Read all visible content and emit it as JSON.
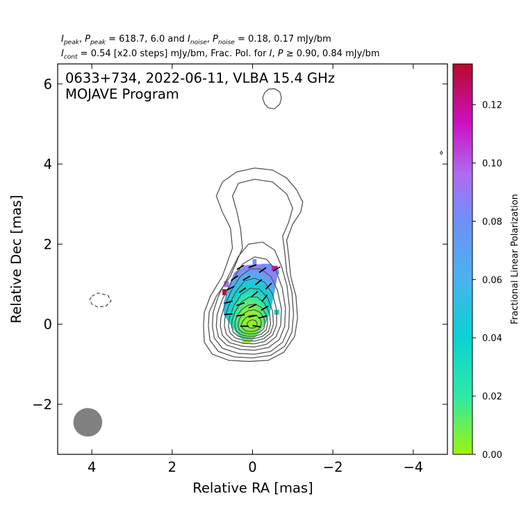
{
  "header": {
    "line1": {
      "i_peak_label": "I",
      "i_peak_sub": "peak",
      "p_peak_label": "P",
      "p_peak_sub": "peak",
      "peak_values": "= 618.7, 6.0 and",
      "i_noise_label": "I",
      "i_noise_sub": "noise",
      "p_noise_label": "P",
      "p_noise_sub": "noise",
      "noise_values": "= 0.18, 0.17 mJy/bm"
    },
    "line2": {
      "i_cont_label": "I",
      "i_cont_sub": "cont",
      "cont_text": "= 0.54 [x2.0 steps] mJy/bm, Frac. Pol. for",
      "i_label": "I",
      "p_label": "P",
      "tail_text": "≥  0.90, 0.84 mJy/bm"
    }
  },
  "chart_data": {
    "type": "heatmap",
    "title_line1": "0633+734, 2022-06-11, VLBA 15.4 GHz",
    "title_line2": "MOJAVE Program",
    "xlabel": "Relative RA [mas]",
    "ylabel": "Relative Dec [mas]",
    "xlim": [
      4.85,
      -4.85
    ],
    "ylim": [
      -3.25,
      6.5
    ],
    "xticks": [
      4,
      2,
      0,
      -2,
      -4
    ],
    "xtick_labels": [
      "4",
      "2",
      "0",
      "−2",
      "−4"
    ],
    "yticks": [
      -2,
      0,
      2,
      4,
      6
    ],
    "ytick_labels": [
      "−2",
      "0",
      "2",
      "4",
      "6"
    ],
    "grid": false,
    "colorbar": {
      "label": "Fractional Linear Polarization",
      "range": [
        0.0,
        0.134
      ],
      "ticks": [
        0.0,
        0.02,
        0.04,
        0.06,
        0.08,
        0.1,
        0.12
      ],
      "tick_labels": [
        "0.00",
        "0.02",
        "0.04",
        "0.06",
        "0.08",
        "0.10",
        "0.12"
      ],
      "colors": [
        "#9cf50a",
        "#2ee8a8",
        "#0ad2d2",
        "#4ab2f0",
        "#6e90f8",
        "#b06af0",
        "#cc10c0",
        "#b80a28"
      ]
    },
    "contour_color": "#555555",
    "beam": {
      "ra": 4.1,
      "dec": -2.45,
      "major_mas": 0.72,
      "minor_mas": 0.68,
      "color": "#808080"
    },
    "contours": [
      {
        "type": "closed",
        "points": [
          [
            1.22,
            -0.05
          ],
          [
            1.2,
            -0.45
          ],
          [
            1.0,
            -0.75
          ],
          [
            0.6,
            -0.9
          ],
          [
            0.1,
            -0.93
          ],
          [
            -0.4,
            -0.9
          ],
          [
            -0.78,
            -0.7
          ],
          [
            -1.05,
            -0.3
          ],
          [
            -1.12,
            0.15
          ],
          [
            -1.08,
            0.7
          ],
          [
            -0.95,
            1.2
          ],
          [
            -0.9,
            1.7
          ],
          [
            -0.85,
            2.1
          ],
          [
            -1.0,
            2.5
          ],
          [
            -1.2,
            2.8
          ],
          [
            -1.25,
            3.05
          ],
          [
            -1.1,
            3.35
          ],
          [
            -0.85,
            3.65
          ],
          [
            -0.5,
            3.85
          ],
          [
            -0.05,
            3.9
          ],
          [
            0.4,
            3.8
          ],
          [
            0.75,
            3.55
          ],
          [
            0.9,
            3.2
          ],
          [
            0.75,
            2.8
          ],
          [
            0.55,
            2.4
          ],
          [
            0.5,
            1.9
          ],
          [
            0.75,
            1.2
          ],
          [
            1.05,
            0.7
          ],
          [
            1.2,
            0.3
          ]
        ]
      },
      {
        "type": "closed",
        "points": [
          [
            1.1,
            -0.05
          ],
          [
            1.06,
            -0.4
          ],
          [
            0.85,
            -0.68
          ],
          [
            0.45,
            -0.82
          ],
          [
            0.0,
            -0.84
          ],
          [
            -0.45,
            -0.78
          ],
          [
            -0.8,
            -0.55
          ],
          [
            -0.98,
            -0.2
          ],
          [
            -1.02,
            0.25
          ],
          [
            -0.98,
            0.8
          ],
          [
            -0.85,
            1.3
          ],
          [
            -0.8,
            1.8
          ],
          [
            -0.75,
            2.2
          ],
          [
            -0.9,
            2.55
          ],
          [
            -1.0,
            2.9
          ],
          [
            -0.85,
            3.25
          ],
          [
            -0.5,
            3.55
          ],
          [
            -0.05,
            3.62
          ],
          [
            0.35,
            3.52
          ],
          [
            0.5,
            3.2
          ],
          [
            0.4,
            2.85
          ],
          [
            0.3,
            2.4
          ],
          [
            0.25,
            1.9
          ],
          [
            0.55,
            1.2
          ],
          [
            0.9,
            0.7
          ],
          [
            1.08,
            0.3
          ]
        ]
      },
      {
        "type": "closed",
        "points": [
          [
            1.0,
            -0.05
          ],
          [
            0.95,
            -0.35
          ],
          [
            0.75,
            -0.6
          ],
          [
            0.35,
            -0.73
          ],
          [
            -0.05,
            -0.75
          ],
          [
            -0.45,
            -0.68
          ],
          [
            -0.75,
            -0.45
          ],
          [
            -0.9,
            -0.1
          ],
          [
            -0.92,
            0.4
          ],
          [
            -0.86,
            0.95
          ],
          [
            -0.72,
            1.45
          ],
          [
            -0.55,
            1.85
          ],
          [
            -0.25,
            2.05
          ],
          [
            0.1,
            2.0
          ],
          [
            0.35,
            1.7
          ],
          [
            0.6,
            1.2
          ],
          [
            0.85,
            0.7
          ],
          [
            0.98,
            0.3
          ]
        ]
      },
      {
        "type": "closed",
        "points": [
          [
            0.9,
            -0.05
          ],
          [
            0.85,
            -0.32
          ],
          [
            0.65,
            -0.52
          ],
          [
            0.3,
            -0.63
          ],
          [
            -0.05,
            -0.65
          ],
          [
            -0.4,
            -0.58
          ],
          [
            -0.67,
            -0.38
          ],
          [
            -0.8,
            -0.05
          ],
          [
            -0.82,
            0.4
          ],
          [
            -0.74,
            0.9
          ],
          [
            -0.58,
            1.35
          ],
          [
            -0.35,
            1.62
          ],
          [
            -0.05,
            1.68
          ],
          [
            0.25,
            1.5
          ],
          [
            0.5,
            1.1
          ],
          [
            0.75,
            0.62
          ],
          [
            0.88,
            0.25
          ]
        ]
      },
      {
        "type": "closed",
        "points": [
          [
            0.8,
            -0.05
          ],
          [
            0.75,
            -0.28
          ],
          [
            0.57,
            -0.46
          ],
          [
            0.25,
            -0.55
          ],
          [
            -0.05,
            -0.57
          ],
          [
            -0.35,
            -0.5
          ],
          [
            -0.58,
            -0.32
          ],
          [
            -0.7,
            -0.03
          ],
          [
            -0.72,
            0.38
          ],
          [
            -0.62,
            0.85
          ],
          [
            -0.45,
            1.2
          ],
          [
            -0.2,
            1.38
          ],
          [
            0.05,
            1.38
          ],
          [
            0.3,
            1.2
          ],
          [
            0.52,
            0.85
          ],
          [
            0.7,
            0.45
          ],
          [
            0.79,
            0.15
          ]
        ]
      },
      {
        "type": "closed",
        "points": [
          [
            0.7,
            -0.05
          ],
          [
            0.65,
            -0.25
          ],
          [
            0.5,
            -0.4
          ],
          [
            0.22,
            -0.48
          ],
          [
            -0.05,
            -0.49
          ],
          [
            -0.3,
            -0.43
          ],
          [
            -0.5,
            -0.27
          ],
          [
            -0.6,
            -0.02
          ],
          [
            -0.6,
            0.35
          ],
          [
            -0.5,
            0.75
          ],
          [
            -0.3,
            1.05
          ],
          [
            -0.05,
            1.15
          ],
          [
            0.2,
            1.08
          ],
          [
            0.42,
            0.8
          ],
          [
            0.6,
            0.45
          ],
          [
            0.69,
            0.15
          ]
        ]
      },
      {
        "type": "closed",
        "points": [
          [
            0.6,
            -0.05
          ],
          [
            0.56,
            -0.22
          ],
          [
            0.42,
            -0.35
          ],
          [
            0.18,
            -0.41
          ],
          [
            -0.05,
            -0.42
          ],
          [
            -0.28,
            -0.36
          ],
          [
            -0.45,
            -0.22
          ],
          [
            -0.52,
            0.0
          ],
          [
            -0.5,
            0.32
          ],
          [
            -0.38,
            0.65
          ],
          [
            -0.18,
            0.87
          ],
          [
            0.05,
            0.9
          ],
          [
            0.28,
            0.75
          ],
          [
            0.47,
            0.45
          ],
          [
            0.58,
            0.15
          ]
        ]
      },
      {
        "type": "closed",
        "points": [
          [
            0.52,
            -0.05
          ],
          [
            0.48,
            -0.2
          ],
          [
            0.35,
            -0.3
          ],
          [
            0.15,
            -0.35
          ],
          [
            -0.05,
            -0.36
          ],
          [
            -0.25,
            -0.3
          ],
          [
            -0.4,
            -0.18
          ],
          [
            -0.45,
            0.02
          ],
          [
            -0.42,
            0.28
          ],
          [
            -0.3,
            0.52
          ],
          [
            -0.12,
            0.68
          ],
          [
            0.08,
            0.68
          ],
          [
            0.28,
            0.55
          ],
          [
            0.43,
            0.32
          ],
          [
            0.51,
            0.1
          ]
        ]
      },
      {
        "type": "closed",
        "points": [
          [
            0.44,
            -0.05
          ],
          [
            0.4,
            -0.17
          ],
          [
            0.29,
            -0.26
          ],
          [
            0.12,
            -0.3
          ],
          [
            -0.05,
            -0.3
          ],
          [
            -0.22,
            -0.25
          ],
          [
            -0.34,
            -0.14
          ],
          [
            -0.38,
            0.03
          ],
          [
            -0.35,
            0.22
          ],
          [
            -0.24,
            0.4
          ],
          [
            -0.08,
            0.5
          ],
          [
            0.1,
            0.48
          ],
          [
            0.26,
            0.38
          ],
          [
            0.38,
            0.22
          ],
          [
            0.43,
            0.07
          ]
        ]
      },
      {
        "type": "closed",
        "points": [
          [
            0.36,
            -0.04
          ],
          [
            0.33,
            -0.14
          ],
          [
            0.24,
            -0.21
          ],
          [
            0.1,
            -0.24
          ],
          [
            -0.04,
            -0.24
          ],
          [
            -0.18,
            -0.2
          ],
          [
            -0.28,
            -0.11
          ],
          [
            -0.31,
            0.03
          ],
          [
            -0.28,
            0.17
          ],
          [
            -0.18,
            0.3
          ],
          [
            -0.05,
            0.36
          ],
          [
            0.1,
            0.34
          ],
          [
            0.23,
            0.26
          ],
          [
            0.32,
            0.14
          ],
          [
            0.35,
            0.04
          ]
        ]
      },
      {
        "type": "closed",
        "points": [
          [
            0.28,
            -0.03
          ],
          [
            0.25,
            -0.1
          ],
          [
            0.18,
            -0.16
          ],
          [
            0.08,
            -0.18
          ],
          [
            -0.03,
            -0.18
          ],
          [
            -0.13,
            -0.14
          ],
          [
            -0.2,
            -0.07
          ],
          [
            -0.22,
            0.03
          ],
          [
            -0.19,
            0.13
          ],
          [
            -0.12,
            0.2
          ],
          [
            -0.02,
            0.23
          ],
          [
            0.09,
            0.21
          ],
          [
            0.18,
            0.15
          ],
          [
            0.24,
            0.08
          ],
          [
            0.27,
            0.02
          ]
        ]
      },
      {
        "type": "closed",
        "points": [
          [
            0.14,
            0.0
          ],
          [
            0.12,
            -0.06
          ],
          [
            0.07,
            -0.09
          ],
          [
            0.0,
            -0.1
          ],
          [
            -0.07,
            -0.08
          ],
          [
            -0.11,
            -0.03
          ],
          [
            -0.11,
            0.04
          ],
          [
            -0.07,
            0.09
          ],
          [
            0.0,
            0.11
          ],
          [
            0.07,
            0.09
          ],
          [
            0.12,
            0.05
          ]
        ]
      },
      {
        "type": "closed",
        "points": [
          [
            -0.25,
            5.65
          ],
          [
            -0.3,
            5.5
          ],
          [
            -0.4,
            5.4
          ],
          [
            -0.55,
            5.38
          ],
          [
            -0.68,
            5.5
          ],
          [
            -0.72,
            5.65
          ],
          [
            -0.68,
            5.8
          ],
          [
            -0.55,
            5.88
          ],
          [
            -0.4,
            5.87
          ],
          [
            -0.3,
            5.78
          ]
        ]
      },
      {
        "type": "closed",
        "points": [
          [
            -4.67,
            4.28
          ],
          [
            -4.7,
            4.24
          ],
          [
            -4.73,
            4.28
          ],
          [
            -4.7,
            4.32
          ]
        ]
      },
      {
        "type": "dashed",
        "points": [
          [
            4.0,
            0.7
          ],
          [
            3.85,
            0.78
          ],
          [
            3.6,
            0.72
          ],
          [
            3.52,
            0.58
          ],
          [
            3.65,
            0.45
          ],
          [
            3.85,
            0.43
          ],
          [
            4.0,
            0.5
          ],
          [
            4.05,
            0.62
          ]
        ]
      }
    ],
    "polarization_pixels": [
      {
        "ra": -0.05,
        "dec": 1.55,
        "w": 0.1,
        "h": 0.15,
        "frac": 0.075
      },
      {
        "ra": -0.35,
        "dec": 1.45,
        "w": 0.25,
        "h": 0.12,
        "frac": 0.07
      },
      {
        "ra": -0.55,
        "dec": 1.4,
        "w": 0.15,
        "h": 0.12,
        "frac": 0.11
      },
      {
        "ra": 0.65,
        "dec": 1.0,
        "w": 0.12,
        "h": 0.15,
        "frac": 0.1
      },
      {
        "ra": 0.7,
        "dec": 0.8,
        "w": 0.1,
        "h": 0.15,
        "frac": 0.125
      },
      {
        "ra": -0.6,
        "dec": 1.3,
        "w": 0.12,
        "h": 0.12,
        "frac": 0.075
      },
      {
        "ra": -0.6,
        "dec": 0.3,
        "w": 0.12,
        "h": 0.12,
        "frac": 0.035
      },
      {
        "ra": 0.15,
        "dec": -0.42,
        "w": 0.2,
        "h": 0.1,
        "frac": 0.005
      }
    ],
    "polarization_ticks": [
      {
        "ra": 0.3,
        "dec": 1.42,
        "angle": -30
      },
      {
        "ra": 0.0,
        "dec": 1.45,
        "angle": -20
      },
      {
        "ra": -0.25,
        "dec": 1.35,
        "angle": -35
      },
      {
        "ra": 0.45,
        "dec": 1.15,
        "angle": -35
      },
      {
        "ra": 0.15,
        "dec": 1.15,
        "angle": -30
      },
      {
        "ra": -0.15,
        "dec": 1.05,
        "angle": -40
      },
      {
        "ra": -0.4,
        "dec": 0.95,
        "angle": -45
      },
      {
        "ra": 0.55,
        "dec": 0.9,
        "angle": -25
      },
      {
        "ra": 0.25,
        "dec": 0.85,
        "angle": -35
      },
      {
        "ra": -0.05,
        "dec": 0.75,
        "angle": -40
      },
      {
        "ra": -0.3,
        "dec": 0.65,
        "angle": -50
      },
      {
        "ra": 0.6,
        "dec": 0.55,
        "angle": -15
      },
      {
        "ra": 0.3,
        "dec": 0.5,
        "angle": -20
      },
      {
        "ra": 0.0,
        "dec": 0.45,
        "angle": -25
      },
      {
        "ra": -0.3,
        "dec": 0.4,
        "angle": -30
      },
      {
        "ra": 0.6,
        "dec": 0.25,
        "angle": -5
      },
      {
        "ra": 0.3,
        "dec": 0.22,
        "angle": -10
      },
      {
        "ra": 0.0,
        "dec": 0.2,
        "angle": -12
      },
      {
        "ra": -0.25,
        "dec": 0.18,
        "angle": -15
      },
      {
        "ra": 0.2,
        "dec": -0.05,
        "angle": 0
      },
      {
        "ra": -0.1,
        "dec": -0.05,
        "angle": 10
      },
      {
        "ra": -0.6,
        "dec": 1.38,
        "angle": -30
      }
    ]
  }
}
